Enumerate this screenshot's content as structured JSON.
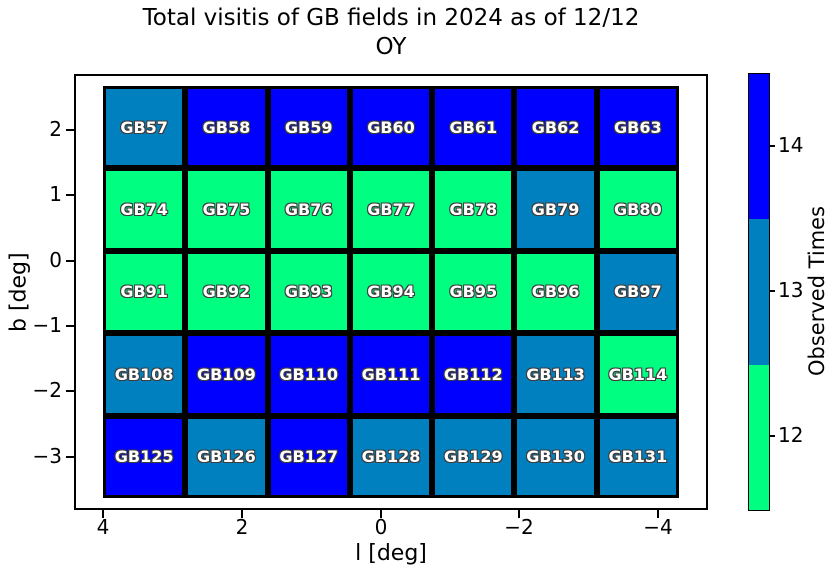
{
  "figure": {
    "title_line1": "Total visitis of GB fields in 2024 as of 12/12",
    "title_line2": "OY"
  },
  "chart_data": {
    "type": "heatmap",
    "title": "Total visitis of GB fields in 2024 as of 12/12 OY",
    "xlabel": "l [deg]",
    "ylabel": "b [deg]",
    "x_tick_labels": [
      "4",
      "2",
      "0",
      "−2",
      "−4"
    ],
    "y_tick_labels": [
      "2",
      "1",
      "0",
      "−1",
      "−2",
      "−3"
    ],
    "x_axis_reversed": true,
    "grid": false,
    "colorbar": {
      "label": "Observed Times",
      "tick_labels": [
        "14",
        "13",
        "12"
      ],
      "segments": [
        {
          "value": 14,
          "color": "#0000FF"
        },
        {
          "value": 13,
          "color": "#0080BF"
        },
        {
          "value": 12,
          "color": "#00FF80"
        }
      ]
    },
    "value_colors": {
      "12": "#00FF80",
      "13": "#0080BF",
      "14": "#0000FF"
    },
    "rows": [
      {
        "fields": [
          "GB57",
          "GB58",
          "GB59",
          "GB60",
          "GB61",
          "GB62",
          "GB63"
        ],
        "values": [
          13,
          14,
          14,
          14,
          14,
          14,
          14
        ]
      },
      {
        "fields": [
          "GB74",
          "GB75",
          "GB76",
          "GB77",
          "GB78",
          "GB79",
          "GB80"
        ],
        "values": [
          12,
          12,
          12,
          12,
          12,
          13,
          12
        ]
      },
      {
        "fields": [
          "GB91",
          "GB92",
          "GB93",
          "GB94",
          "GB95",
          "GB96",
          "GB97"
        ],
        "values": [
          12,
          12,
          12,
          12,
          12,
          12,
          13
        ]
      },
      {
        "fields": [
          "GB108",
          "GB109",
          "GB110",
          "GB111",
          "GB112",
          "GB113",
          "GB114"
        ],
        "values": [
          13,
          14,
          14,
          14,
          14,
          13,
          12
        ]
      },
      {
        "fields": [
          "GB125",
          "GB126",
          "GB127",
          "GB128",
          "GB129",
          "GB130",
          "GB131"
        ],
        "values": [
          14,
          13,
          14,
          13,
          13,
          13,
          13
        ]
      }
    ]
  }
}
